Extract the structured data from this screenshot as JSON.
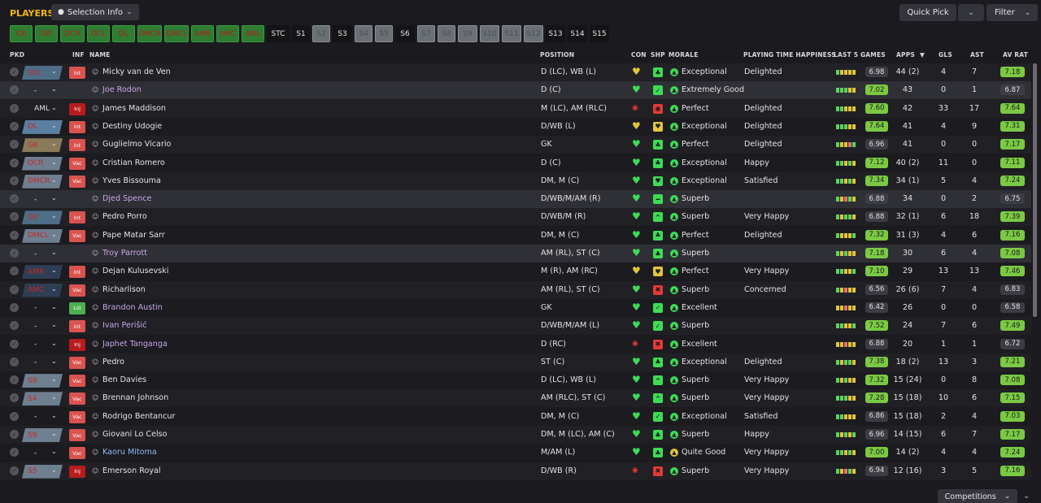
{
  "header": {
    "title": "PLAYERS",
    "selection_info": "Selection Info",
    "quick_pick": "Quick Pick",
    "filter": "Filter",
    "competitions": "Competitions"
  },
  "chips": [
    "GK",
    "DR",
    "DCR",
    "DCL",
    "DL",
    "DMCR",
    "DMCL",
    "AMR",
    "AMC",
    "AML",
    "STC",
    "S1",
    "S2",
    "S3",
    "S4",
    "S5",
    "S6",
    "S7",
    "S8",
    "S9",
    "S10",
    "S11",
    "S12",
    "S13",
    "S14",
    "S15"
  ],
  "columns": {
    "pkd": "PKD",
    "inf": "INF",
    "name": "NAME",
    "position": "POSITION",
    "con": "CON",
    "shp": "SHP",
    "morale": "MORALE",
    "pth": "PLAYING TIME HAPPINESS",
    "last5": "LAST 5 GAMES",
    "apps": "APPS",
    "gls": "GLS",
    "ast": "AST",
    "avrat": "AV RAT"
  },
  "players": [
    {
      "pkd": "DCL",
      "inf": "Int",
      "name": "Micky van de Ven",
      "position": "D (LC), WB (L)",
      "morale": "Exceptional",
      "pth": "Delighted",
      "last5": "6.98",
      "apps": "44 (2)",
      "gls": "4",
      "ast": "7",
      "avr": "7.18"
    },
    {
      "pkd": "-",
      "inf": "",
      "name": "Joe Rodon",
      "position": "D (C)",
      "morale": "Extremely Good",
      "pth": "",
      "last5": "7.02",
      "apps": "43",
      "gls": "0",
      "ast": "1",
      "avr": "6.87"
    },
    {
      "pkd": "AML",
      "inf": "Inj",
      "name": "James Maddison",
      "position": "M (LC), AM (RLC)",
      "morale": "Perfect",
      "pth": "Delighted",
      "last5": "7.60",
      "apps": "42",
      "gls": "33",
      "ast": "17",
      "avr": "7.64"
    },
    {
      "pkd": "DL",
      "inf": "Int",
      "name": "Destiny Udogie",
      "position": "D/WB (L)",
      "morale": "Exceptional",
      "pth": "Delighted",
      "last5": "7.64",
      "apps": "41",
      "gls": "4",
      "ast": "9",
      "avr": "7.31"
    },
    {
      "pkd": "GK",
      "inf": "Int",
      "name": "Guglielmo Vicario",
      "position": "GK",
      "morale": "Perfect",
      "pth": "Delighted",
      "last5": "6.96",
      "apps": "41",
      "gls": "0",
      "ast": "0",
      "avr": "7.17"
    },
    {
      "pkd": "DCR",
      "inf": "Vac",
      "name": "Cristian Romero",
      "position": "D (C)",
      "morale": "Exceptional",
      "pth": "Happy",
      "last5": "7.12",
      "apps": "40 (2)",
      "gls": "11",
      "ast": "0",
      "avr": "7.11"
    },
    {
      "pkd": "DMCR",
      "inf": "Vac",
      "name": "Yves Bissouma",
      "position": "DM, M (C)",
      "morale": "Exceptional",
      "pth": "Satisfied",
      "last5": "7.34",
      "apps": "34 (1)",
      "gls": "5",
      "ast": "4",
      "avr": "7.24"
    },
    {
      "pkd": "-",
      "inf": "",
      "name": "Djed Spence",
      "position": "D/WB/M/AM (R)",
      "morale": "Superb",
      "pth": "",
      "last5": "6.88",
      "apps": "34",
      "gls": "0",
      "ast": "2",
      "avr": "6.75"
    },
    {
      "pkd": "DR",
      "inf": "Int",
      "name": "Pedro Porro",
      "position": "D/WB/M (R)",
      "morale": "Superb",
      "pth": "Very Happy",
      "last5": "6.88",
      "apps": "32 (1)",
      "gls": "6",
      "ast": "18",
      "avr": "7.39"
    },
    {
      "pkd": "DMCL",
      "inf": "Vac",
      "name": "Pape Matar Sarr",
      "position": "DM, M (C)",
      "morale": "Perfect",
      "pth": "Delighted",
      "last5": "7.32",
      "apps": "31 (3)",
      "gls": "4",
      "ast": "6",
      "avr": "7.16"
    },
    {
      "pkd": "-",
      "inf": "",
      "name": "Troy Parrott",
      "position": "AM (RL), ST (C)",
      "morale": "Superb",
      "pth": "",
      "last5": "7.18",
      "apps": "30",
      "gls": "6",
      "ast": "4",
      "avr": "7.08"
    },
    {
      "pkd": "AMR",
      "inf": "Int",
      "name": "Dejan Kulusevski",
      "position": "M (R), AM (RC)",
      "morale": "Perfect",
      "pth": "Very Happy",
      "last5": "7.10",
      "apps": "29",
      "gls": "13",
      "ast": "13",
      "avr": "7.46"
    },
    {
      "pkd": "AMC",
      "inf": "Vac",
      "name": "Richarlison",
      "position": "AM (RL), ST (C)",
      "morale": "Superb",
      "pth": "Concerned",
      "last5": "6.56",
      "apps": "26 (6)",
      "gls": "7",
      "ast": "4",
      "avr": "6.83"
    },
    {
      "pkd": "-",
      "inf": "Lst",
      "name": "Brandon Austin",
      "position": "GK",
      "morale": "Excellent",
      "pth": "",
      "last5": "6.42",
      "apps": "26",
      "gls": "0",
      "ast": "0",
      "avr": "6.58"
    },
    {
      "pkd": "-",
      "inf": "Int",
      "name": "Ivan Perišić",
      "position": "D/WB/M/AM (L)",
      "morale": "Superb",
      "pth": "",
      "last5": "7.52",
      "apps": "24",
      "gls": "7",
      "ast": "6",
      "avr": "7.49"
    },
    {
      "pkd": "-",
      "inf": "Inj",
      "name": "Japhet Tanganga",
      "position": "D (RC)",
      "morale": "Excellent",
      "pth": "",
      "last5": "6.88",
      "apps": "20",
      "gls": "1",
      "ast": "1",
      "avr": "6.72"
    },
    {
      "pkd": "-",
      "inf": "Vac",
      "name": "Pedro",
      "position": "ST (C)",
      "morale": "Exceptional",
      "pth": "Delighted",
      "last5": "7.38",
      "apps": "18 (2)",
      "gls": "13",
      "ast": "3",
      "avr": "7.21"
    },
    {
      "pkd": "S8",
      "inf": "Vac",
      "name": "Ben Davies",
      "position": "D (LC), WB (L)",
      "morale": "Superb",
      "pth": "Very Happy",
      "last5": "7.32",
      "apps": "15 (24)",
      "gls": "0",
      "ast": "8",
      "avr": "7.08"
    },
    {
      "pkd": "S4",
      "inf": "Vac",
      "name": "Brennan Johnson",
      "position": "AM (RLC), ST (C)",
      "morale": "Superb",
      "pth": "Very Happy",
      "last5": "7.28",
      "apps": "15 (18)",
      "gls": "10",
      "ast": "6",
      "avr": "7.15"
    },
    {
      "pkd": "-",
      "inf": "Vac",
      "name": "Rodrigo Bentancur",
      "position": "DM, M (C)",
      "morale": "Exceptional",
      "pth": "Satisfied",
      "last5": "6.86",
      "apps": "15 (18)",
      "gls": "2",
      "ast": "4",
      "avr": "7.03"
    },
    {
      "pkd": "S9",
      "inf": "Vac",
      "name": "Giovani Lo Celso",
      "position": "DM, M (LC), AM (C)",
      "morale": "Superb",
      "pth": "Happy",
      "last5": "6.96",
      "apps": "14 (15)",
      "gls": "6",
      "ast": "7",
      "avr": "7.17"
    },
    {
      "pkd": "-",
      "inf": "Vac",
      "name": "Kaoru Mitoma",
      "position": "M/AM (L)",
      "morale": "Quite Good",
      "pth": "Very Happy",
      "last5": "7.00",
      "apps": "14 (2)",
      "gls": "4",
      "ast": "4",
      "avr": "7.24"
    },
    {
      "pkd": "S5",
      "inf": "Inj",
      "name": "Emerson Royal",
      "position": "D/WB (R)",
      "morale": "Superb",
      "pth": "Very Happy",
      "last5": "6.94",
      "apps": "12 (16)",
      "gls": "3",
      "ast": "5",
      "avr": "7.16"
    }
  ],
  "colors": {
    "accent": "#f2b705",
    "rating_high": "#7ac943",
    "rating_mid": "#3c3c44",
    "condition_green": "#3ddc55",
    "condition_yellow": "#e3c43b",
    "condition_red": "#e53935"
  }
}
